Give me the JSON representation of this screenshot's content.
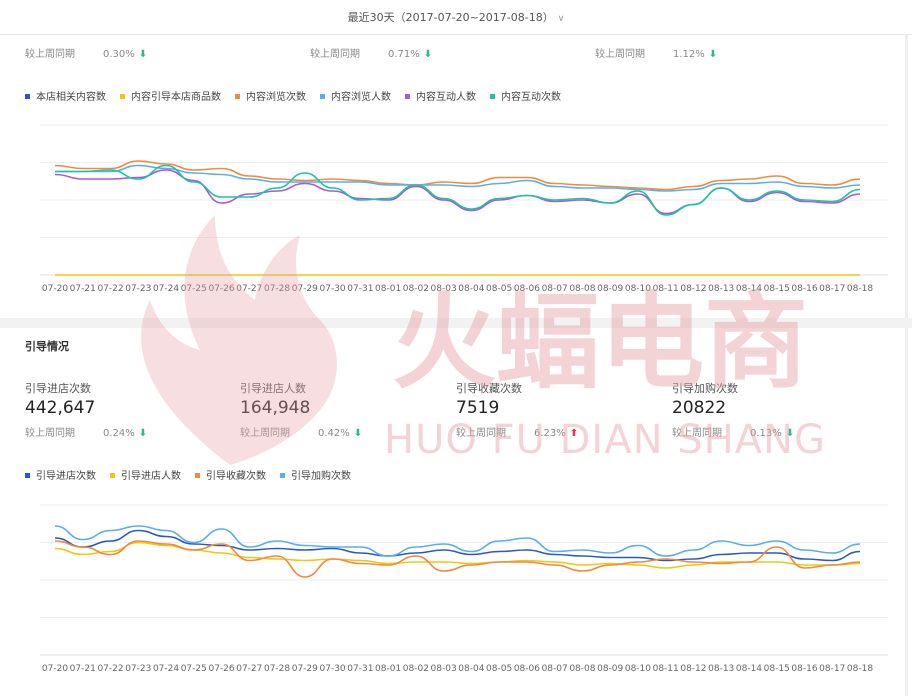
{
  "header": {
    "range_label": "最近30天（2017-07-20~2017-08-18）"
  },
  "content_section": {
    "comparisons": [
      {
        "label": "较上周同期",
        "pct": "0.30%",
        "dir": "down"
      },
      {
        "label": "较上周同期",
        "pct": "0.71%",
        "dir": "down"
      },
      {
        "label": "较上周同期",
        "pct": "1.12%",
        "dir": "down"
      }
    ]
  },
  "guide_section": {
    "title": "引导情况",
    "metrics": [
      {
        "label": "引导进店次数",
        "value": "442,647",
        "cmp_label": "较上周同期",
        "pct": "0.24%",
        "dir": "down"
      },
      {
        "label": "引导进店人数",
        "value": "164,948",
        "cmp_label": "较上周同期",
        "pct": "0.42%",
        "dir": "down"
      },
      {
        "label": "引导收藏次数",
        "value": "7519",
        "cmp_label": "较上周同期",
        "pct": "6.23%",
        "dir": "up"
      },
      {
        "label": "引导加购次数",
        "value": "20822",
        "cmp_label": "较上周同期",
        "pct": "0.13%",
        "dir": "down"
      }
    ]
  },
  "watermark": {
    "text_cn": "火蝠电商",
    "text_en": "HUO FU DIAN SHANG",
    "color": "#e8a0a8"
  },
  "arrows": {
    "down": "⬇",
    "up": "⬆"
  },
  "chart_data": [
    {
      "type": "line",
      "title": "",
      "x": [
        "07-20",
        "07-21",
        "07-22",
        "07-23",
        "07-24",
        "07-25",
        "07-26",
        "07-27",
        "07-28",
        "07-29",
        "07-30",
        "07-31",
        "08-01",
        "08-02",
        "08-03",
        "08-04",
        "08-05",
        "08-06",
        "08-07",
        "08-08",
        "08-09",
        "08-10",
        "08-11",
        "08-12",
        "08-13",
        "08-14",
        "08-15",
        "08-16",
        "08-17",
        "08-18"
      ],
      "ylim": [
        0,
        100
      ],
      "grid": true,
      "legend_position": "top-left",
      "series": [
        {
          "name": "本店相关内容数",
          "color": "#2b59c3",
          "values": [
            null,
            null,
            null,
            null,
            null,
            null,
            null,
            null,
            null,
            null,
            null,
            null,
            null,
            null,
            null,
            null,
            null,
            null,
            null,
            null,
            null,
            null,
            null,
            null,
            null,
            null,
            null,
            null,
            null,
            null
          ]
        },
        {
          "name": "内容引导本店商品数",
          "color": "#f2c511",
          "values": [
            0,
            0,
            0,
            0,
            0,
            0,
            0,
            0,
            0,
            0,
            0,
            0,
            0,
            0,
            0,
            0,
            0,
            0,
            0,
            0,
            0,
            0,
            0,
            0,
            0,
            0,
            0,
            0,
            0,
            0
          ]
        },
        {
          "name": "内容浏览次数",
          "color": "#f08a3c",
          "values": [
            73,
            71,
            71,
            76,
            74,
            70,
            71,
            66,
            64,
            63,
            64,
            63,
            61,
            60,
            62,
            61,
            65,
            65,
            61,
            60,
            59,
            58,
            57,
            59,
            63,
            64,
            66,
            61,
            60,
            64
          ]
        },
        {
          "name": "内容浏览人数",
          "color": "#5aaeea",
          "values": [
            69,
            69,
            69,
            73,
            71,
            68,
            67,
            64,
            62,
            62,
            62,
            62,
            60,
            60,
            60,
            59,
            61,
            63,
            59,
            58,
            58,
            57,
            56,
            57,
            61,
            61,
            62,
            59,
            58,
            60
          ]
        },
        {
          "name": "内容互动人数",
          "color": "#a95bd6",
          "values": [
            67,
            64,
            64,
            65,
            70,
            63,
            48,
            54,
            56,
            61,
            56,
            51,
            50,
            59,
            50,
            43,
            50,
            53,
            49,
            50,
            48,
            54,
            41,
            47,
            58,
            49,
            55,
            49,
            48,
            54
          ]
        },
        {
          "name": "内容互动次数",
          "color": "#1ec3a6",
          "values": [
            69,
            69,
            70,
            64,
            73,
            62,
            52,
            52,
            58,
            68,
            58,
            50,
            51,
            60,
            51,
            44,
            51,
            53,
            50,
            51,
            48,
            56,
            40,
            47,
            58,
            50,
            56,
            50,
            49,
            57
          ]
        }
      ]
    },
    {
      "type": "line",
      "title": "",
      "x": [
        "07-20",
        "07-21",
        "07-22",
        "07-23",
        "07-24",
        "07-25",
        "07-26",
        "07-27",
        "07-28",
        "07-29",
        "07-30",
        "07-31",
        "08-01",
        "08-02",
        "08-03",
        "08-04",
        "08-05",
        "08-06",
        "08-07",
        "08-08",
        "08-09",
        "08-10",
        "08-11",
        "08-12",
        "08-13",
        "08-14",
        "08-15",
        "08-16",
        "08-17",
        "08-18"
      ],
      "ylim": [
        0,
        100
      ],
      "grid": true,
      "legend_position": "top-left",
      "series": [
        {
          "name": "引导进店次数",
          "color": "#2b59c3",
          "values": [
            78,
            72,
            76,
            83,
            79,
            74,
            73,
            70,
            71,
            70,
            71,
            68,
            66,
            68,
            70,
            67,
            69,
            70,
            67,
            66,
            65,
            65,
            63,
            64,
            67,
            68,
            68,
            64,
            63,
            69
          ]
        },
        {
          "name": "引导进店人数",
          "color": "#f2c511",
          "values": [
            71,
            67,
            69,
            75,
            73,
            70,
            68,
            65,
            64,
            63,
            64,
            63,
            61,
            62,
            62,
            61,
            62,
            63,
            62,
            60,
            61,
            60,
            58,
            60,
            62,
            62,
            62,
            60,
            60,
            61
          ]
        },
        {
          "name": "引导收藏次数",
          "color": "#f08a3c",
          "values": [
            76,
            72,
            67,
            76,
            74,
            70,
            74,
            63,
            66,
            52,
            64,
            61,
            60,
            66,
            56,
            60,
            62,
            62,
            60,
            56,
            60,
            62,
            64,
            62,
            61,
            62,
            72,
            58,
            60,
            62
          ]
        },
        {
          "name": "引导加购次数",
          "color": "#5aaeea",
          "values": [
            86,
            77,
            83,
            86,
            83,
            75,
            84,
            72,
            76,
            73,
            72,
            72,
            66,
            72,
            74,
            69,
            76,
            78,
            69,
            70,
            68,
            73,
            66,
            70,
            76,
            73,
            76,
            70,
            68,
            74
          ]
        }
      ]
    }
  ]
}
